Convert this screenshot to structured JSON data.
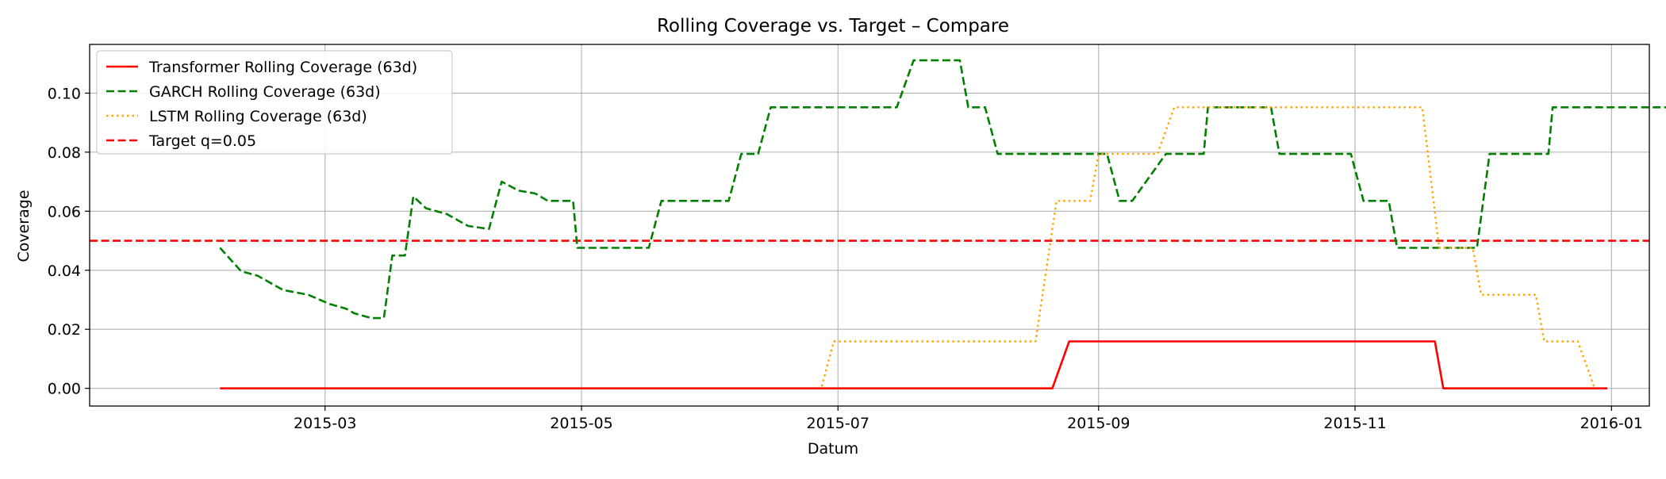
{
  "chart_data": {
    "type": "line",
    "title": "Rolling Coverage vs. Target – Compare",
    "xlabel": "Datum",
    "ylabel": "Coverage",
    "xlim": [
      "2015-01-04",
      "2016-01-10"
    ],
    "ylim": [
      -0.006,
      0.1165
    ],
    "grid": true,
    "legend_position": "upper-left",
    "xticks": [
      {
        "date": "2015-03-01",
        "label": "2015-03"
      },
      {
        "date": "2015-05-01",
        "label": "2015-05"
      },
      {
        "date": "2015-07-01",
        "label": "2015-07"
      },
      {
        "date": "2015-09-01",
        "label": "2015-09"
      },
      {
        "date": "2015-11-01",
        "label": "2015-11"
      },
      {
        "date": "2016-01-01",
        "label": "2016-01"
      }
    ],
    "yticks": [
      {
        "value": 0.0,
        "label": "0.00"
      },
      {
        "value": 0.02,
        "label": "0.02"
      },
      {
        "value": 0.04,
        "label": "0.04"
      },
      {
        "value": 0.06,
        "label": "0.06"
      },
      {
        "value": 0.08,
        "label": "0.08"
      },
      {
        "value": 0.1,
        "label": "0.10"
      }
    ],
    "series": [
      {
        "name": "Transformer Rolling Coverage (63d)",
        "color": "#ff0000",
        "style": "solid",
        "points": [
          [
            "2015-02-04",
            0.0
          ],
          [
            "2015-08-21",
            0.0
          ],
          [
            "2015-08-25",
            0.0159
          ],
          [
            "2015-11-20",
            0.0159
          ],
          [
            "2015-11-22",
            0.0
          ],
          [
            "2015-12-31",
            0.0
          ]
        ]
      },
      {
        "name": "GARCH Rolling Coverage (63d)",
        "color": "#008000",
        "style": "dashed",
        "points": [
          [
            "2015-02-04",
            0.0476
          ],
          [
            "2015-02-09",
            0.0397
          ],
          [
            "2015-02-13",
            0.0381
          ],
          [
            "2015-02-19",
            0.0333
          ],
          [
            "2015-02-25",
            0.0317
          ],
          [
            "2015-03-02",
            0.0286
          ],
          [
            "2015-03-06",
            0.027
          ],
          [
            "2015-03-08",
            0.0254
          ],
          [
            "2015-03-12",
            0.0238
          ],
          [
            "2015-03-15",
            0.0238
          ],
          [
            "2015-03-17",
            0.045
          ],
          [
            "2015-03-20",
            0.045
          ],
          [
            "2015-03-22",
            0.065
          ],
          [
            "2015-03-25",
            0.061
          ],
          [
            "2015-03-30",
            0.059
          ],
          [
            "2015-04-04",
            0.055
          ],
          [
            "2015-04-09",
            0.054
          ],
          [
            "2015-04-12",
            0.07
          ],
          [
            "2015-04-16",
            0.067
          ],
          [
            "2015-04-20",
            0.066
          ],
          [
            "2015-04-23",
            0.0635
          ],
          [
            "2015-04-29",
            0.0635
          ],
          [
            "2015-04-30",
            0.0476
          ],
          [
            "2015-05-17",
            0.0476
          ],
          [
            "2015-05-20",
            0.0635
          ],
          [
            "2015-06-05",
            0.0635
          ],
          [
            "2015-06-08",
            0.0794
          ],
          [
            "2015-06-12",
            0.0794
          ],
          [
            "2015-06-15",
            0.0952
          ],
          [
            "2015-07-15",
            0.0952
          ],
          [
            "2015-07-19",
            0.1111
          ],
          [
            "2015-07-30",
            0.1111
          ],
          [
            "2015-08-01",
            0.0952
          ],
          [
            "2015-08-05",
            0.0952
          ],
          [
            "2015-08-08",
            0.0794
          ],
          [
            "2015-09-03",
            0.0794
          ],
          [
            "2015-09-06",
            0.0635
          ],
          [
            "2015-09-09",
            0.0635
          ],
          [
            "2015-09-17",
            0.0794
          ],
          [
            "2015-09-26",
            0.0794
          ],
          [
            "2015-09-27",
            0.0952
          ],
          [
            "2015-10-12",
            0.0952
          ],
          [
            "2015-10-14",
            0.0794
          ],
          [
            "2015-10-31",
            0.0794
          ],
          [
            "2015-11-03",
            0.0635
          ],
          [
            "2015-11-09",
            0.0635
          ],
          [
            "2015-11-11",
            0.0476
          ],
          [
            "2015-11-30",
            0.0476
          ],
          [
            "2015-12-03",
            0.0794
          ],
          [
            "2015-12-17",
            0.0794
          ],
          [
            "2015-12-18",
            0.0952
          ],
          [
            "2016-01-15",
            0.0952
          ]
        ]
      },
      {
        "name": "LSTM Rolling Coverage (63d)",
        "color": "#ffa500",
        "style": "dotted",
        "points": [
          [
            "2015-02-04",
            0.0
          ],
          [
            "2015-06-27",
            0.0
          ],
          [
            "2015-06-30",
            0.0159
          ],
          [
            "2015-08-17",
            0.0159
          ],
          [
            "2015-08-22",
            0.0635
          ],
          [
            "2015-08-30",
            0.0635
          ],
          [
            "2015-09-01",
            0.0794
          ],
          [
            "2015-09-15",
            0.0794
          ],
          [
            "2015-09-19",
            0.0952
          ],
          [
            "2015-11-17",
            0.0952
          ],
          [
            "2015-11-21",
            0.0476
          ],
          [
            "2015-11-29",
            0.0476
          ],
          [
            "2015-12-01",
            0.0317
          ],
          [
            "2015-12-14",
            0.0317
          ],
          [
            "2015-12-16",
            0.0159
          ],
          [
            "2015-12-24",
            0.0159
          ],
          [
            "2015-12-28",
            0.0
          ],
          [
            "2015-12-31",
            0.0
          ]
        ]
      },
      {
        "name": "Target q=0.05",
        "color": "#ff0000",
        "style": "dashed",
        "hline": 0.05
      }
    ]
  }
}
